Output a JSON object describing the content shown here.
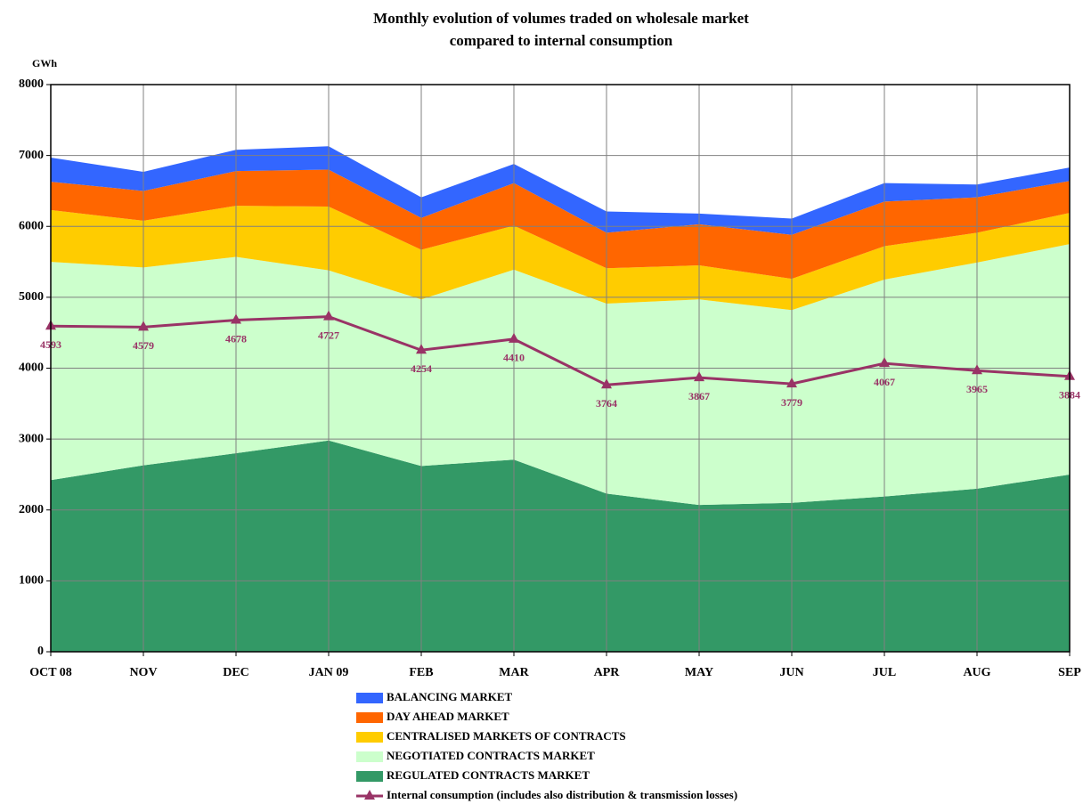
{
  "chart_data": {
    "type": "stacked-area",
    "title": [
      "Monthly evolution of volumes traded on wholesale market",
      "compared to internal consumption"
    ],
    "y_label": "GWh",
    "categories": [
      "OCT 08",
      "NOV",
      "DEC",
      "JAN 09",
      "FEB",
      "MAR",
      "APR",
      "MAY",
      "JUN",
      "JUL",
      "AUG",
      "SEP"
    ],
    "ylim": [
      0,
      8000
    ],
    "yticks": [
      0,
      1000,
      2000,
      3000,
      4000,
      5000,
      6000,
      7000,
      8000
    ],
    "grid": true,
    "series": [
      {
        "name": "REGULATED CONTRACTS MARKET",
        "type": "area",
        "color": "#339966",
        "values": [
          2420,
          2630,
          2800,
          2980,
          2620,
          2710,
          2230,
          2070,
          2100,
          2190,
          2300,
          2500
        ]
      },
      {
        "name": "NEGOTIATED CONTRACTS MARKET",
        "type": "area",
        "color": "#ccffcc",
        "values": [
          3080,
          2790,
          2770,
          2400,
          2350,
          2680,
          2680,
          2900,
          2720,
          3060,
          3190,
          3250
        ]
      },
      {
        "name": "CENTRALISED MARKETS OF CONTRACTS",
        "type": "area",
        "color": "#ffcc00",
        "values": [
          730,
          660,
          720,
          900,
          700,
          620,
          500,
          480,
          440,
          470,
          420,
          440
        ]
      },
      {
        "name": "DAY AHEAD MARKET",
        "type": "area",
        "color": "#ff6600",
        "values": [
          400,
          420,
          490,
          520,
          450,
          600,
          500,
          580,
          620,
          630,
          500,
          450
        ]
      },
      {
        "name": "BALANCING MARKET",
        "type": "area",
        "color": "#3366ff",
        "values": [
          340,
          270,
          300,
          330,
          290,
          270,
          300,
          150,
          230,
          260,
          180,
          190
        ]
      },
      {
        "name": "Internal consumption (includes also distribution & transmission losses)",
        "type": "line",
        "color": "#993366",
        "values": [
          4593,
          4579,
          4678,
          4727,
          4254,
          4410,
          3764,
          3867,
          3779,
          4067,
          3965,
          3884
        ]
      }
    ]
  }
}
